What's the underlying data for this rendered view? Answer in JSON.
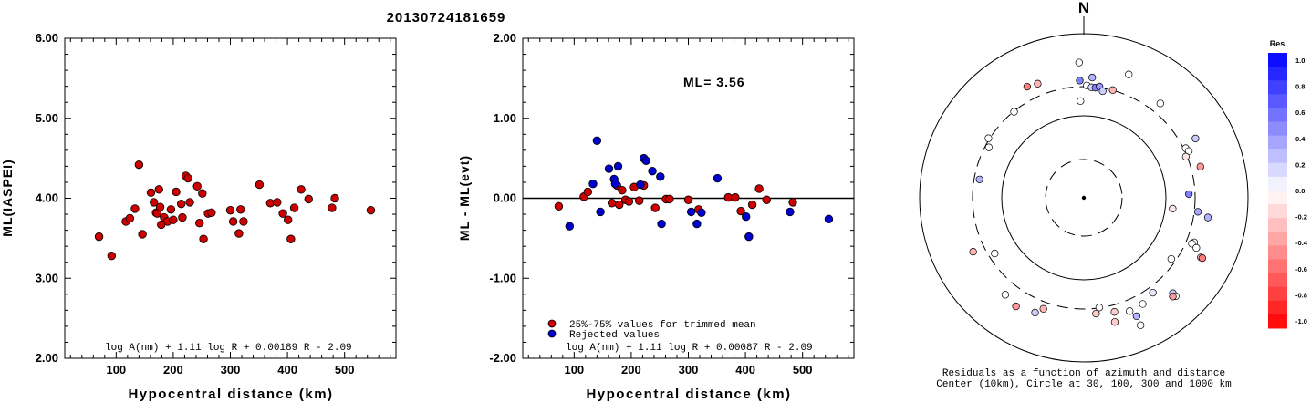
{
  "title": "20130724181659",
  "colors": {
    "red": "#cc0000",
    "blue": "#0000cc",
    "black": "#000000"
  },
  "chart_data": [
    {
      "type": "scatter",
      "id": "ml_iaspei",
      "ylabel": "ML(IASPEI)",
      "xlabel": "Hypocentral distance (km)",
      "xlim": [
        10,
        590
      ],
      "ylim": [
        2.0,
        6.0
      ],
      "xticks": [
        100,
        200,
        300,
        400,
        500
      ],
      "yticks": [
        2.0,
        3.0,
        4.0,
        5.0,
        6.0
      ],
      "ytick_labels": [
        "2.00",
        "3.00",
        "4.00",
        "5.00",
        "6.00"
      ],
      "formula": "log A(nm) + 1.11 log R + 0.00189 R - 2.09",
      "points": [
        [
          70,
          3.52
        ],
        [
          92,
          3.28
        ],
        [
          117,
          3.71
        ],
        [
          124,
          3.75
        ],
        [
          133,
          3.87
        ],
        [
          140,
          4.42
        ],
        [
          146,
          3.55
        ],
        [
          161,
          4.07
        ],
        [
          166,
          3.95
        ],
        [
          170,
          3.82
        ],
        [
          172,
          3.81
        ],
        [
          175,
          4.11
        ],
        [
          177,
          3.89
        ],
        [
          179,
          3.67
        ],
        [
          184,
          3.76
        ],
        [
          190,
          3.71
        ],
        [
          196,
          3.86
        ],
        [
          200,
          3.73
        ],
        [
          205,
          4.08
        ],
        [
          214,
          3.93
        ],
        [
          216,
          3.76
        ],
        [
          222,
          4.28
        ],
        [
          226,
          4.25
        ],
        [
          229,
          3.95
        ],
        [
          242,
          4.15
        ],
        [
          246,
          3.69
        ],
        [
          251,
          4.06
        ],
        [
          253,
          3.49
        ],
        [
          261,
          3.81
        ],
        [
          267,
          3.82
        ],
        [
          300,
          3.85
        ],
        [
          305,
          3.71
        ],
        [
          315,
          3.56
        ],
        [
          318,
          3.86
        ],
        [
          323,
          3.71
        ],
        [
          351,
          4.17
        ],
        [
          370,
          3.94
        ],
        [
          382,
          3.95
        ],
        [
          392,
          3.81
        ],
        [
          401,
          3.73
        ],
        [
          406,
          3.49
        ],
        [
          412,
          3.88
        ],
        [
          424,
          4.11
        ],
        [
          437,
          3.99
        ],
        [
          478,
          3.88
        ],
        [
          483,
          4.0
        ],
        [
          546,
          3.85
        ]
      ]
    },
    {
      "type": "scatter",
      "id": "ml_residual",
      "ylabel": "ML - ML(evt)",
      "xlabel": "Hypocentral distance (km)",
      "xlim": [
        10,
        590
      ],
      "ylim": [
        -2.0,
        2.0
      ],
      "xticks": [
        100,
        200,
        300,
        400,
        500
      ],
      "yticks": [
        -2.0,
        -1.0,
        0.0,
        1.0,
        2.0
      ],
      "ytick_labels": [
        "-2.00",
        "-1.00",
        "0.00",
        "1.00",
        "2.00"
      ],
      "annotation": "ML= 3.56",
      "legend": [
        "25%-75% values for trimmed mean",
        "Rejected values"
      ],
      "formula": "log A(nm) + 1.11 log R + 0.00087 R - 2.09",
      "series": [
        {
          "name": "25%-75% values for trimmed mean",
          "color": "#cc0000",
          "points": [
            [
              73,
              -0.1
            ],
            [
              117,
              0.02
            ],
            [
              124,
              0.08
            ],
            [
              166,
              -0.06
            ],
            [
              175,
              0.16
            ],
            [
              179,
              -0.08
            ],
            [
              184,
              0.1
            ],
            [
              190,
              -0.02
            ],
            [
              196,
              -0.04
            ],
            [
              205,
              0.14
            ],
            [
              214,
              -0.03
            ],
            [
              222,
              0.16
            ],
            [
              242,
              -0.12
            ],
            [
              261,
              -0.01
            ],
            [
              267,
              -0.01
            ],
            [
              300,
              -0.02
            ],
            [
              318,
              -0.14
            ],
            [
              370,
              0.01
            ],
            [
              382,
              0.01
            ],
            [
              392,
              -0.16
            ],
            [
              412,
              -0.08
            ],
            [
              424,
              0.12
            ],
            [
              437,
              -0.02
            ],
            [
              483,
              -0.05
            ]
          ]
        },
        {
          "name": "Rejected values",
          "color": "#0000cc",
          "points": [
            [
              92,
              -0.35
            ],
            [
              133,
              0.18
            ],
            [
              140,
              0.72
            ],
            [
              146,
              -0.17
            ],
            [
              161,
              0.37
            ],
            [
              170,
              0.24
            ],
            [
              172,
              0.18
            ],
            [
              177,
              0.4
            ],
            [
              216,
              0.17
            ],
            [
              222,
              0.5
            ],
            [
              226,
              0.47
            ],
            [
              237,
              0.34
            ],
            [
              251,
              0.27
            ],
            [
              253,
              -0.32
            ],
            [
              305,
              -0.17
            ],
            [
              315,
              -0.32
            ],
            [
              323,
              -0.18
            ],
            [
              351,
              0.25
            ],
            [
              401,
              -0.23
            ],
            [
              406,
              -0.48
            ],
            [
              478,
              -0.17
            ],
            [
              546,
              -0.26
            ]
          ]
        }
      ]
    },
    {
      "type": "polar",
      "id": "azimuth_residuals",
      "north_label": "N",
      "caption": [
        "Residuals as a function of azimuth and distance",
        "Center (10km), Circle at 30, 100, 300 and 1000 km"
      ],
      "colorbar_title": "Res",
      "colorbar_ticks": [
        "1.0",
        "0.8",
        "0.6",
        "0.4",
        "0.2",
        "0.0",
        "-0.2",
        "-0.4",
        "-0.6",
        "-0.8",
        "-1.0"
      ],
      "rings_km": [
        30,
        100,
        300,
        1000
      ],
      "stations": [
        [
          -2,
          1.18,
          0.0
        ],
        [
          -2,
          1.43,
          0.5
        ],
        [
          1.5,
          1.37,
          0.0
        ],
        [
          4,
          1.35,
          0.15
        ],
        [
          4,
          1.47,
          0.3
        ],
        [
          6,
          1.35,
          0.5
        ],
        [
          8,
          1.37,
          0.4
        ],
        [
          10,
          1.32,
          0.2
        ],
        [
          15,
          1.36,
          -0.3
        ],
        [
          20,
          1.6,
          0.0
        ],
        [
          39,
          1.48,
          0.0
        ],
        [
          62,
          1.54,
          0.2
        ],
        [
          64,
          1.38,
          0.0
        ],
        [
          66,
          1.4,
          0.0
        ],
        [
          68,
          1.34,
          -0.1
        ],
        [
          75,
          1.47,
          -0.4
        ],
        [
          88,
          1.28,
          0.5
        ],
        [
          97,
          1.09,
          -0.1
        ],
        [
          97,
          1.4,
          0.35
        ],
        [
          99,
          1.53,
          0.3
        ],
        [
          112,
          1.45,
          0.0
        ],
        [
          113,
          1.43,
          0.0
        ],
        [
          114,
          1.5,
          0.0
        ],
        [
          117,
          1.6,
          -0.3
        ],
        [
          117,
          1.62,
          -0.5
        ],
        [
          125,
          1.3,
          0.0
        ],
        [
          137,
          1.59,
          0.2
        ],
        [
          137,
          1.64,
          0.0
        ],
        [
          138,
          1.62,
          -0.4
        ],
        [
          144,
          1.43,
          0.1
        ],
        [
          151,
          1.48,
          0.0
        ],
        [
          156,
          1.58,
          0.3
        ],
        [
          156,
          1.7,
          0.0
        ],
        [
          158,
          1.49,
          0.0
        ],
        [
          165,
          1.44,
          -0.2
        ],
        [
          166,
          1.56,
          -0.2
        ],
        [
          172,
          1.35,
          0.0
        ],
        [
          174,
          1.42,
          -0.2
        ],
        [
          200,
          1.44,
          -0.3
        ],
        [
          203,
          1.52,
          0.2
        ],
        [
          212,
          1.56,
          -0.4
        ],
        [
          219,
          1.52,
          0.0
        ],
        [
          238,
          1.28,
          0.0
        ],
        [
          244,
          1.5,
          -0.3
        ],
        [
          280,
          1.29,
          0.3
        ],
        [
          298,
          1.31,
          0.0
        ],
        [
          302,
          1.37,
          0.0
        ],
        [
          321,
          1.35,
          0.0
        ],
        [
          333,
          1.52,
          -0.5
        ],
        [
          338,
          1.5,
          -0.3
        ],
        [
          358,
          1.65,
          0.0
        ]
      ]
    }
  ]
}
